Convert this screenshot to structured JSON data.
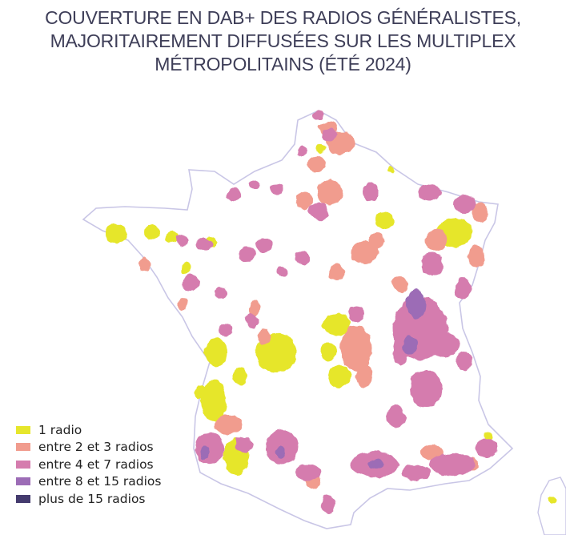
{
  "title": {
    "line1": "COUVERTURE EN DAB+ DES RADIOS GÉNÉRALISTES,",
    "line2": "MAJORITAIREMENT DIFFUSÉES SUR LES MULTIPLEX",
    "line3": "MÉTROPOLITAINS (ÉTÉ 2024)"
  },
  "legend": {
    "items": [
      {
        "label": "1 radio",
        "color": "#e6e62c"
      },
      {
        "label": "entre 2 et 3 radios",
        "color": "#f19c8e"
      },
      {
        "label": "entre 4 et 7 radios",
        "color": "#d57cae"
      },
      {
        "label": "entre 8 et 15 radios",
        "color": "#9c6cb6"
      },
      {
        "label": "plus de 15 radios",
        "color": "#443b6e"
      }
    ]
  },
  "colors": {
    "title": "#3e3e58",
    "outline": "#c9c6e6",
    "land": "#ffffff"
  }
}
